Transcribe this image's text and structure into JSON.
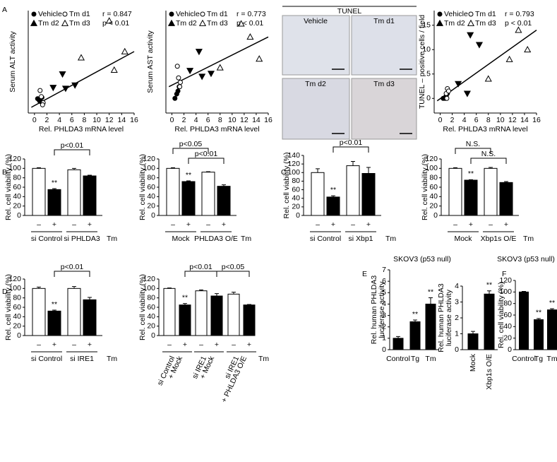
{
  "panel_labels": [
    "A",
    "B",
    "C",
    "D",
    "E",
    "F"
  ],
  "images": {
    "title": "TUNEL",
    "labels": [
      "Vehicle",
      "Tm d1",
      "Tm d2",
      "Tm d3"
    ]
  },
  "chart_data": [
    {
      "type": "scatter",
      "y_label": "Serum ALT activity",
      "x_label": "Rel. PHLDA3 mRNA level",
      "xlim": [
        -1,
        16
      ],
      "ylim": [
        0,
        250
      ],
      "xticks": [
        0,
        2,
        4,
        6,
        8,
        10,
        12,
        14,
        16
      ],
      "annotations": [
        "r = 0.847",
        "p < 0.01"
      ],
      "series": [
        {
          "name": "Vehicle",
          "marker": "circle",
          "filled": true,
          "color": "#000000",
          "x": [
            0.5,
            0.8,
            1.0,
            1.2
          ],
          "values": [
            35,
            30,
            28,
            38
          ]
        },
        {
          "name": "Tm d1",
          "marker": "circle",
          "filled": false,
          "color": "#000000",
          "x": [
            0.9,
            1.1,
            1.4,
            1.3
          ],
          "values": [
            55,
            40,
            25,
            20
          ]
        },
        {
          "name": "Tm d2",
          "marker": "triangle",
          "filled": true,
          "color": "#000000",
          "x": [
            3,
            4.5,
            5,
            6.5
          ],
          "values": [
            62,
            95,
            60,
            68
          ]
        },
        {
          "name": "Tm d3",
          "marker": "triangle",
          "filled": false,
          "color": "#000000",
          "x": [
            7.5,
            12,
            12.8,
            14.5
          ],
          "values": [
            135,
            225,
            105,
            150
          ]
        }
      ],
      "trendline": {
        "x": [
          -0.5,
          16
        ],
        "values": [
          14,
          150
        ]
      }
    },
    {
      "type": "scatter",
      "y_label": "Serum AST activity",
      "x_label": "Rel. PHLDA3 mRNA level",
      "xlim": [
        -1,
        16
      ],
      "ylim": [
        0,
        700
      ],
      "xticks": [
        0,
        2,
        4,
        6,
        8,
        10,
        12,
        14,
        16
      ],
      "annotations": [
        "r = 0.773",
        "p < 0.01"
      ],
      "series": [
        {
          "name": "Vehicle",
          "marker": "circle",
          "filled": true,
          "color": "#000000",
          "x": [
            0.5,
            0.8,
            1.0,
            1.2
          ],
          "values": [
            100,
            130,
            150,
            180
          ]
        },
        {
          "name": "Tm d1",
          "marker": "circle",
          "filled": false,
          "color": "#000000",
          "x": [
            0.9,
            1.1,
            1.4,
            1.3
          ],
          "values": [
            320,
            240,
            210,
            180
          ]
        },
        {
          "name": "Tm d2",
          "marker": "triangle",
          "filled": true,
          "color": "#000000",
          "x": [
            3,
            4.5,
            5,
            6.5
          ],
          "values": [
            290,
            420,
            250,
            270
          ]
        },
        {
          "name": "Tm d3",
          "marker": "triangle",
          "filled": false,
          "color": "#000000",
          "x": [
            8,
            11.5,
            13,
            14.5
          ],
          "values": [
            310,
            610,
            520,
            370
          ]
        }
      ],
      "trendline": {
        "x": [
          -0.5,
          16
        ],
        "values": [
          180,
          520
        ]
      }
    },
    {
      "type": "scatter",
      "y_label": "TUNEL – positive cells / field",
      "x_label": "Rel. PHLDA3 mRNA level",
      "xlim": [
        -1,
        16
      ],
      "ylim": [
        -3,
        18
      ],
      "xticks": [
        0,
        2,
        4,
        6,
        8,
        10,
        12,
        14,
        16
      ],
      "yticks": [
        0,
        5,
        10,
        15
      ],
      "annotations": [
        "r = 0.793",
        "p < 0.01"
      ],
      "series": [
        {
          "name": "Vehicle",
          "marker": "circle",
          "filled": true,
          "color": "#000000",
          "x": [
            0.5,
            0.8,
            1.0,
            1.2
          ],
          "values": [
            0,
            0,
            0.5,
            1
          ]
        },
        {
          "name": "Tm d1",
          "marker": "circle",
          "filled": false,
          "color": "#000000",
          "x": [
            1.0,
            1.2,
            1.4,
            1.1
          ],
          "values": [
            1,
            2,
            1.5,
            0
          ]
        },
        {
          "name": "Tm d2",
          "marker": "triangle",
          "filled": true,
          "color": "#000000",
          "x": [
            3,
            4.5,
            5,
            6.5
          ],
          "values": [
            3,
            1,
            13,
            11
          ]
        },
        {
          "name": "Tm d3",
          "marker": "triangle",
          "filled": false,
          "color": "#000000",
          "x": [
            8,
            11.5,
            13,
            14.5
          ],
          "values": [
            4,
            8,
            14,
            10
          ]
        }
      ],
      "trendline": {
        "x": [
          -0.5,
          16
        ],
        "values": [
          -0.5,
          14
        ]
      }
    },
    {
      "type": "bar",
      "y_label": "Rel. cell viability (%)",
      "ylim": [
        0,
        120
      ],
      "yticks": [
        0,
        20,
        40,
        60,
        80,
        100,
        120
      ],
      "categories": [
        "–",
        "+",
        "–",
        "+"
      ],
      "values": [
        100,
        55,
        97,
        84
      ],
      "errors": [
        1.5,
        2,
        3,
        1.5
      ],
      "colors": [
        "#ffffff",
        "#000000",
        "#ffffff",
        "#000000"
      ],
      "significance": [
        null,
        "**",
        null,
        null
      ],
      "groups": [
        "si Control",
        "si PHLDA3"
      ],
      "x_label": "Tm",
      "brackets": [
        "p<0.01"
      ]
    },
    {
      "type": "bar",
      "y_label": "Rel. cell viability (%)",
      "ylim": [
        0,
        120
      ],
      "yticks": [
        0,
        20,
        40,
        60,
        80,
        100,
        120
      ],
      "categories": [
        "–",
        "+",
        "–",
        "+"
      ],
      "values": [
        100,
        72,
        92,
        62
      ],
      "errors": [
        1.5,
        1.5,
        1,
        3
      ],
      "colors": [
        "#ffffff",
        "#000000",
        "#ffffff",
        "#000000"
      ],
      "significance": [
        null,
        "**",
        null,
        null
      ],
      "groups": [
        "Mock",
        "PHLDA3 O/E"
      ],
      "x_label": "Tm",
      "brackets": [
        "p<0.05",
        "p<0.01"
      ]
    },
    {
      "type": "bar",
      "y_label": "Rel. cell viability (%)",
      "ylim": [
        0,
        140
      ],
      "yticks": [
        0,
        20,
        40,
        60,
        80,
        100,
        120,
        140
      ],
      "categories": [
        "–",
        "+",
        "–",
        "+"
      ],
      "values": [
        100,
        43,
        116,
        98
      ],
      "errors": [
        9,
        3,
        10,
        14
      ],
      "colors": [
        "#ffffff",
        "#000000",
        "#ffffff",
        "#000000"
      ],
      "significance": [
        null,
        "**",
        null,
        null
      ],
      "groups": [
        "si Control",
        "si Xbp1"
      ],
      "x_label": "Tm",
      "brackets": [
        "p<0.01"
      ]
    },
    {
      "type": "bar",
      "y_label": "Rel. cell viability (%)",
      "ylim": [
        0,
        120
      ],
      "yticks": [
        0,
        20,
        40,
        60,
        80,
        100,
        120
      ],
      "categories": [
        "–",
        "+",
        "–",
        "+"
      ],
      "values": [
        100,
        75,
        100,
        70
      ],
      "errors": [
        1.5,
        1,
        2,
        2
      ],
      "colors": [
        "#ffffff",
        "#000000",
        "#ffffff",
        "#000000"
      ],
      "significance": [
        null,
        "**",
        null,
        null
      ],
      "groups": [
        "Mock",
        "Xbp1s O/E"
      ],
      "x_label": "Tm",
      "brackets": [
        "N.S.",
        "N.S."
      ]
    },
    {
      "type": "bar",
      "y_label": "Rel. cell viability (%)",
      "ylim": [
        0,
        120
      ],
      "yticks": [
        0,
        20,
        40,
        60,
        80,
        100,
        120
      ],
      "categories": [
        "–",
        "+",
        "–",
        "+"
      ],
      "values": [
        100,
        52,
        100,
        76
      ],
      "errors": [
        3,
        2,
        4,
        5
      ],
      "colors": [
        "#ffffff",
        "#000000",
        "#ffffff",
        "#000000"
      ],
      "significance": [
        null,
        "**",
        null,
        null
      ],
      "groups": [
        "si Control",
        "si IRE1"
      ],
      "x_label": "Tm",
      "brackets": [
        "p<0.01"
      ]
    },
    {
      "type": "bar",
      "y_label": "Rel. cell viability (%)",
      "ylim": [
        0,
        120
      ],
      "yticks": [
        0,
        20,
        40,
        60,
        80,
        100,
        120
      ],
      "categories": [
        "–",
        "+",
        "–",
        "+",
        "–",
        "+"
      ],
      "values": [
        100,
        65,
        95,
        84,
        88,
        65
      ],
      "errors": [
        1,
        3,
        2,
        5,
        4,
        1
      ],
      "colors": [
        "#ffffff",
        "#000000",
        "#ffffff",
        "#000000",
        "#ffffff",
        "#000000"
      ],
      "significance": [
        null,
        "**",
        null,
        null,
        null,
        null
      ],
      "groups": [
        [
          "si Control",
          "+ Mock"
        ],
        [
          "si IRE1",
          "+ Mock"
        ],
        [
          "si IRE1",
          "+ PHLDA3 O/E"
        ]
      ],
      "x_label": "Tm",
      "brackets": [
        "p<0.01",
        "p<0.05"
      ]
    },
    {
      "type": "bar",
      "title": "SKOV3 (p53 null)",
      "y_label": [
        "Rel. human PHLDA3",
        "luciferase activity"
      ],
      "ylim": [
        0,
        7
      ],
      "yticks": [
        0,
        1,
        2,
        3,
        4,
        5,
        6,
        7
      ],
      "categories": [
        "Control",
        "Tg",
        "Tm"
      ],
      "values": [
        1,
        2.45,
        4
      ],
      "errors": [
        0.15,
        0.15,
        0.55
      ],
      "colors": [
        "#000000",
        "#000000",
        "#000000"
      ],
      "significance": [
        null,
        "**",
        "**"
      ]
    },
    {
      "type": "bar",
      "y_label": [
        "Rel. human PHLDA3",
        "luciferase activity"
      ],
      "ylim": [
        0,
        4
      ],
      "yticks": [
        0,
        1,
        2,
        3,
        4
      ],
      "categories": [
        "Mock",
        "Xbp1s O/E"
      ],
      "values": [
        1,
        3.5
      ],
      "errors": [
        0.15,
        0.2
      ],
      "colors": [
        "#000000",
        "#000000"
      ],
      "significance": [
        null,
        "**"
      ]
    },
    {
      "type": "bar",
      "title": "SKOV3 (p53 null)",
      "y_label": "Rel. cell viability (%)",
      "ylim": [
        0,
        120
      ],
      "yticks": [
        0,
        20,
        40,
        60,
        80,
        100,
        120
      ],
      "categories": [
        "Control",
        "Tg",
        "Tm"
      ],
      "values": [
        100,
        52,
        69
      ],
      "errors": [
        1,
        2,
        2
      ],
      "colors": [
        "#000000",
        "#000000",
        "#000000"
      ],
      "significance": [
        null,
        "**",
        "**"
      ]
    }
  ]
}
